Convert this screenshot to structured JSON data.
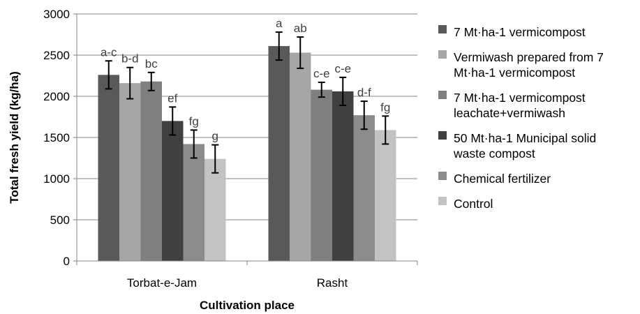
{
  "chart_data": {
    "type": "bar",
    "title": "",
    "xlabel": "Cultivation place",
    "ylabel": "Total fresh yield (kg/ha)",
    "ylim": [
      0,
      3000
    ],
    "yticks": [
      "0",
      "500",
      "1000",
      "1500",
      "2000",
      "2500",
      "3000"
    ],
    "grid": "horizontal",
    "legend_position": "right",
    "categories": [
      "Torbat-e-Jam",
      "Rasht"
    ],
    "series": [
      {
        "name": "7 Mt·ha-1 vermicompost",
        "legend_lines": [
          "7 Mt·ha-1 vermicompost"
        ],
        "color": "#595959",
        "values": [
          2260,
          2610
        ],
        "errors": [
          170,
          170
        ],
        "letters": [
          "a-c",
          "a"
        ]
      },
      {
        "name": "Vermiwash prepared from 7 Mt·ha-1 vermicompost",
        "legend_lines": [
          "Vermiwash prepared from 7",
          "Mt·ha-1 vermicompost"
        ],
        "color": "#a6a6a6",
        "values": [
          2160,
          2530
        ],
        "errors": [
          190,
          190
        ],
        "letters": [
          "b-d",
          "ab"
        ]
      },
      {
        "name": "7 Mt·ha-1 vermicompost leachate+vermiwash",
        "legend_lines": [
          "7 Mt·ha-1 vermicompost",
          "leachate+vermiwash"
        ],
        "color": "#7f7f7f",
        "values": [
          2180,
          2080
        ],
        "errors": [
          110,
          90
        ],
        "letters": [
          "bc",
          "c-e"
        ]
      },
      {
        "name": "50 Mt·ha-1 Municipal solid waste compost",
        "legend_lines": [
          "50 Mt·ha-1 Municipal solid",
          "waste compost"
        ],
        "color": "#404040",
        "values": [
          1700,
          2060
        ],
        "errors": [
          170,
          170
        ],
        "letters": [
          "ef",
          "c-e"
        ]
      },
      {
        "name": "Chemical fertilizer",
        "legend_lines": [
          "Chemical fertilizer"
        ],
        "color": "#8c8c8c",
        "values": [
          1420,
          1770
        ],
        "errors": [
          170,
          170
        ],
        "letters": [
          "fg",
          "d-f"
        ]
      },
      {
        "name": "Control",
        "legend_lines": [
          "Control"
        ],
        "color": "#c3c3c3",
        "values": [
          1240,
          1590
        ],
        "errors": [
          170,
          170
        ],
        "letters": [
          "g",
          "fg"
        ]
      }
    ]
  }
}
